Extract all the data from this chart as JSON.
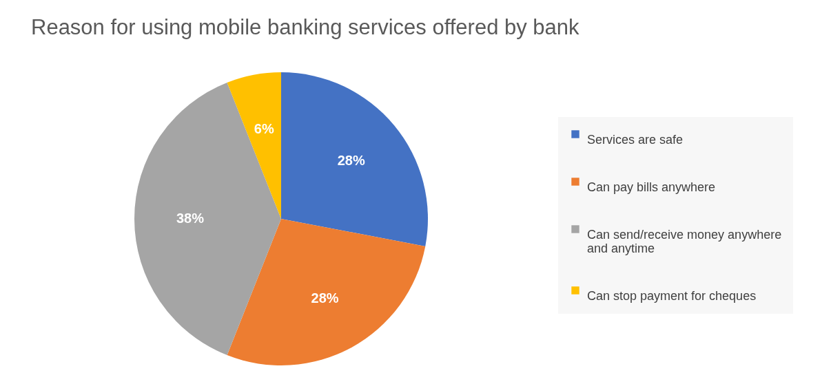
{
  "chart_data": {
    "type": "pie",
    "title": "Reason for using mobile banking services offered by bank",
    "categories": [
      "Services are safe",
      "Can pay bills anywhere",
      "Can send/receive money anywhere and anytime",
      "Can stop payment for cheques"
    ],
    "values": [
      28,
      28,
      38,
      6
    ],
    "colors": [
      "#4472c4",
      "#ed7d31",
      "#a5a5a5",
      "#ffc000"
    ],
    "value_labels": [
      "28%",
      "28%",
      "38%",
      "6%"
    ],
    "legend": "right"
  }
}
